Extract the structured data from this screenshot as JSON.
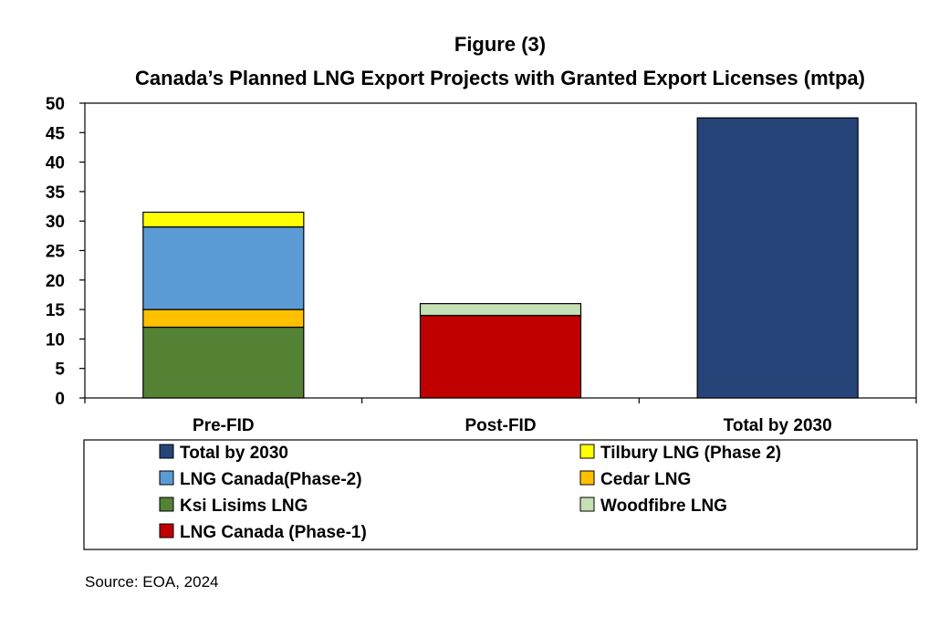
{
  "chart_data": {
    "type": "bar",
    "stacked": true,
    "title": "Figure (3)",
    "subtitle": "Canada’s Planned LNG Export Projects with Granted Export Licenses (mtpa)",
    "xlabel": "",
    "ylabel": "",
    "ylim": [
      0,
      50
    ],
    "yticks": [
      "0",
      "5",
      "10",
      "15",
      "20",
      "25",
      "30",
      "35",
      "40",
      "45",
      "50"
    ],
    "categories": [
      "Pre-FID",
      "Post-FID",
      "Total by 2030"
    ],
    "series": [
      {
        "name": "Ksi Lisims LNG",
        "color": "#548235",
        "values": [
          12,
          0,
          0
        ]
      },
      {
        "name": "Cedar LNG",
        "color": "#FFC000",
        "values": [
          3,
          0,
          0
        ]
      },
      {
        "name": "LNG Canada(Phase-2)",
        "color": "#5B9BD5",
        "values": [
          14,
          0,
          0
        ]
      },
      {
        "name": "Tilbury LNG (Phase 2)",
        "color": "#FFFF00",
        "values": [
          2.5,
          0,
          0
        ]
      },
      {
        "name": "LNG Canada (Phase-1)",
        "color": "#C00000",
        "values": [
          0,
          14,
          0
        ]
      },
      {
        "name": "Woodfibre LNG",
        "color": "#C5E0B4",
        "values": [
          0,
          2,
          0
        ]
      },
      {
        "name": "Total by 2030",
        "color": "#264478",
        "values": [
          0,
          0,
          47.5
        ]
      }
    ],
    "legend": {
      "placement": "bottom",
      "order": [
        "Total by 2030",
        "Tilbury LNG (Phase 2)",
        "LNG Canada(Phase-2)",
        "Cedar LNG",
        "Ksi Lisims LNG",
        "Woodfibre LNG",
        "LNG Canada (Phase-1)"
      ]
    },
    "grid": false,
    "source": "Source: EOA, 2024"
  }
}
